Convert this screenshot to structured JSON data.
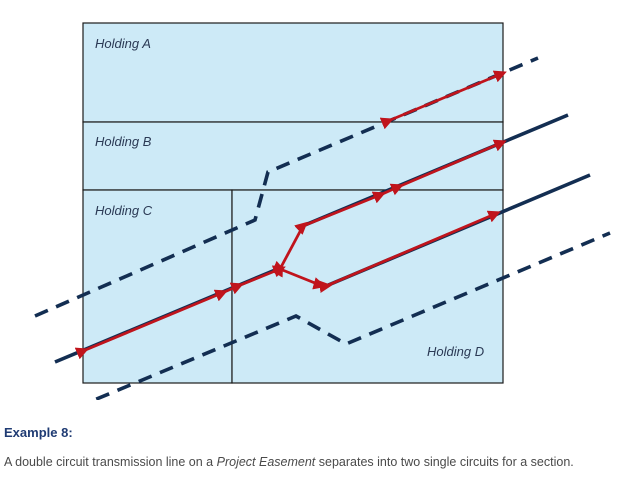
{
  "holdings": {
    "a": "Holding A",
    "b": "Holding B",
    "c": "Holding C",
    "d": "Holding D"
  },
  "caption": {
    "title": "Example 8:",
    "text_before": "A double circuit transmission line on a ",
    "text_emphasis": "Project Easement",
    "text_after": " separates into two single circuits for a section."
  },
  "colors": {
    "holding_fill": "#cdeaf7",
    "boundary": "#1b1b1b",
    "easement_line": "#132e52",
    "circuit": "#c0141c",
    "caption_title": "#1f3b73"
  }
}
